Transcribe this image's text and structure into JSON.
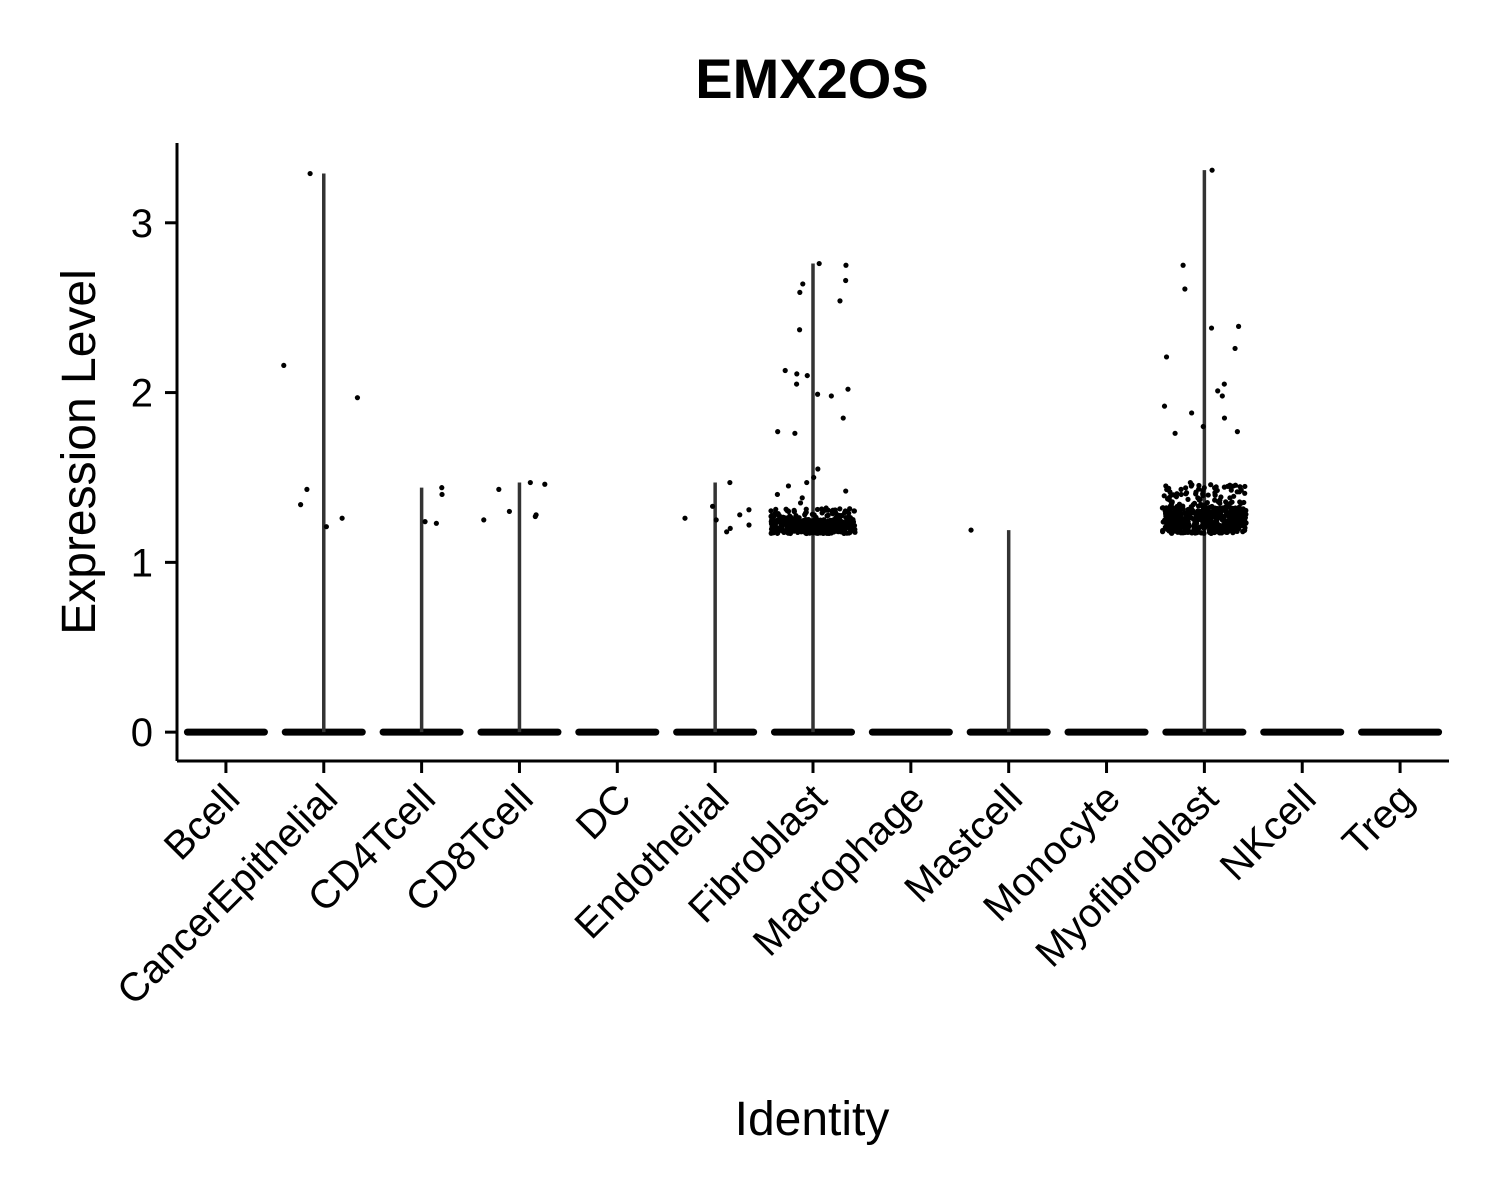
{
  "chart_data": {
    "type": "violin",
    "title": "EMX2OS",
    "xlabel": "Identity",
    "ylabel": "Expression Level",
    "ylim": [
      -0.17,
      3.47
    ],
    "yticks": [
      0,
      1,
      2,
      3
    ],
    "categories": [
      "Bcell",
      "CancerEpithelial",
      "CD4Tcell",
      "CD8Tcell",
      "DC",
      "Endothelial",
      "Fibroblast",
      "Macrophage",
      "Mastcell",
      "Monocyte",
      "Myofibroblast",
      "NKcell",
      "Treg"
    ],
    "max_values": [
      0,
      3.29,
      1.44,
      1.47,
      0,
      1.47,
      2.76,
      0,
      1.19,
      0,
      3.31,
      0,
      0
    ],
    "nonzero_points": [
      [],
      [
        2.16,
        1.97,
        1.43,
        1.34,
        1.26,
        1.21,
        3.29
      ],
      [
        1.44,
        1.4,
        1.24,
        1.23
      ],
      [
        1.47,
        1.46,
        1.43,
        1.3,
        1.28,
        1.27,
        1.25
      ],
      [],
      [
        1.47,
        1.33,
        1.31,
        1.28,
        1.26,
        1.25,
        1.22,
        1.2,
        1.18
      ],
      [
        2.76,
        2.75,
        2.66,
        2.64,
        2.59,
        2.54,
        2.37,
        2.13,
        2.11,
        2.1,
        2.05,
        2.02,
        1.99,
        1.98,
        1.85,
        1.77,
        1.76,
        1.55,
        1.5,
        1.47,
        1.45,
        1.42,
        1.4,
        1.38,
        1.35,
        1.32,
        1.3,
        1.28,
        1.26,
        1.24,
        1.22,
        1.2,
        1.18
      ],
      [],
      [
        1.19
      ],
      [],
      [
        3.31,
        2.75,
        2.61,
        2.39,
        2.38,
        2.26,
        2.21,
        2.05,
        2.01,
        1.98,
        1.92,
        1.88,
        1.85,
        1.8,
        1.77,
        1.76,
        1.47,
        1.45,
        1.43,
        1.4,
        1.38,
        1.35,
        1.32,
        1.3,
        1.28,
        1.26,
        1.24,
        1.22,
        1.2,
        1.18
      ],
      [],
      []
    ]
  }
}
